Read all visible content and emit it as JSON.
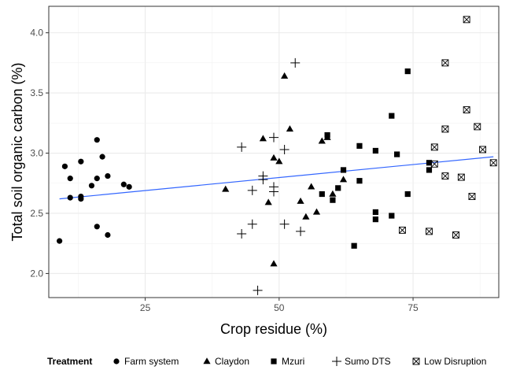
{
  "chart_data": {
    "type": "scatter",
    "title": "",
    "xlabel": "Crop residue (%)",
    "ylabel": "Total soil organic carbon (%)",
    "xlim": [
      7,
      91
    ],
    "ylim": [
      1.8,
      4.22
    ],
    "x_ticks": [
      25,
      50,
      75
    ],
    "x_tick_labels": [
      "25",
      "50",
      "75"
    ],
    "y_ticks": [
      2.0,
      2.5,
      3.0,
      3.5,
      4.0
    ],
    "y_tick_labels": [
      "2.0",
      "2.5",
      "3.0",
      "3.5",
      "4.0"
    ],
    "grid": true,
    "legend_position": "bottom",
    "legend_title": "Treatment",
    "trend_line": {
      "color": "#3366ff",
      "x": [
        9,
        90
      ],
      "y": [
        2.62,
        2.97
      ]
    },
    "series": [
      {
        "name": "Farm system",
        "marker": "circle",
        "points": [
          [
            9,
            2.27
          ],
          [
            10,
            2.89
          ],
          [
            11,
            2.63
          ],
          [
            11,
            2.79
          ],
          [
            13,
            2.93
          ],
          [
            13,
            2.64
          ],
          [
            13,
            2.62
          ],
          [
            15,
            2.73
          ],
          [
            16,
            3.11
          ],
          [
            16,
            2.79
          ],
          [
            16,
            2.39
          ],
          [
            17,
            2.97
          ],
          [
            18,
            2.81
          ],
          [
            18,
            2.32
          ],
          [
            21,
            2.74
          ],
          [
            22,
            2.72
          ]
        ]
      },
      {
        "name": "Claydon",
        "marker": "triangle",
        "points": [
          [
            40,
            2.7
          ],
          [
            47,
            3.12
          ],
          [
            48,
            2.59
          ],
          [
            49,
            2.08
          ],
          [
            49,
            2.96
          ],
          [
            50,
            2.93
          ],
          [
            51,
            3.64
          ],
          [
            52,
            3.2
          ],
          [
            54,
            2.6
          ],
          [
            55,
            2.47
          ],
          [
            56,
            2.72
          ],
          [
            57,
            2.51
          ],
          [
            58,
            3.1
          ],
          [
            59,
            3.13
          ],
          [
            60,
            2.66
          ],
          [
            62,
            2.78
          ]
        ]
      },
      {
        "name": "Mzuri",
        "marker": "square",
        "points": [
          [
            58,
            2.66
          ],
          [
            59,
            3.15
          ],
          [
            60,
            2.61
          ],
          [
            61,
            2.71
          ],
          [
            62,
            2.86
          ],
          [
            64,
            2.23
          ],
          [
            65,
            3.06
          ],
          [
            65,
            2.77
          ],
          [
            68,
            3.02
          ],
          [
            68,
            2.51
          ],
          [
            68,
            2.45
          ],
          [
            71,
            3.31
          ],
          [
            71,
            2.48
          ],
          [
            72,
            2.99
          ],
          [
            74,
            3.68
          ],
          [
            74,
            2.66
          ],
          [
            78,
            2.86
          ],
          [
            78,
            2.92
          ]
        ]
      },
      {
        "name": "Sumo DTS",
        "marker": "plus",
        "points": [
          [
            43,
            3.05
          ],
          [
            43,
            2.33
          ],
          [
            45,
            2.41
          ],
          [
            45,
            2.69
          ],
          [
            46,
            1.86
          ],
          [
            47,
            2.81
          ],
          [
            47,
            2.78
          ],
          [
            49,
            3.13
          ],
          [
            49,
            2.72
          ],
          [
            49,
            2.68
          ],
          [
            51,
            3.03
          ],
          [
            51,
            2.41
          ],
          [
            53,
            3.75
          ],
          [
            54,
            2.35
          ]
        ]
      },
      {
        "name": "Low Disruption",
        "marker": "boxed-x",
        "points": [
          [
            73,
            2.36
          ],
          [
            78,
            2.35
          ],
          [
            79,
            3.05
          ],
          [
            79,
            2.91
          ],
          [
            81,
            3.75
          ],
          [
            81,
            3.2
          ],
          [
            81,
            2.81
          ],
          [
            83,
            2.32
          ],
          [
            84,
            2.8
          ],
          [
            85,
            4.11
          ],
          [
            85,
            3.36
          ],
          [
            86,
            2.64
          ],
          [
            87,
            3.22
          ],
          [
            88,
            3.03
          ],
          [
            90,
            2.92
          ]
        ]
      }
    ]
  }
}
